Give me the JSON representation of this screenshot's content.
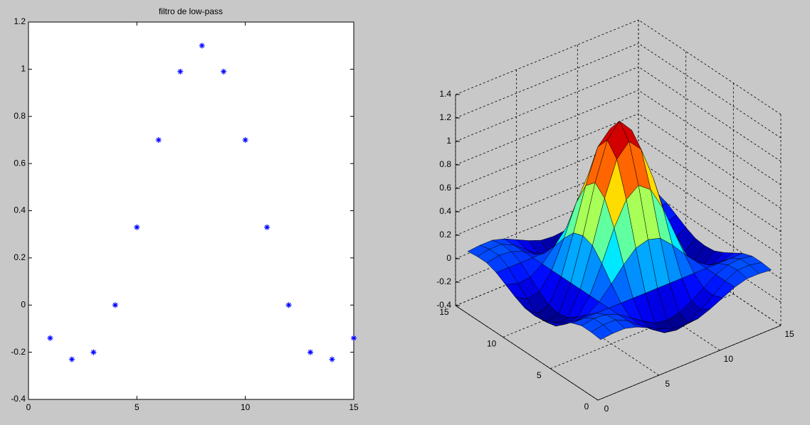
{
  "chart_data": [
    {
      "type": "scatter",
      "title": "filtro de low-pass",
      "marker": "*",
      "color": "#0000ff",
      "x": [
        1,
        2,
        3,
        4,
        5,
        6,
        7,
        8,
        9,
        10,
        11,
        12,
        13,
        14,
        15
      ],
      "values": [
        -0.14,
        -0.23,
        -0.2,
        0,
        0.33,
        0.7,
        0.99,
        1.1,
        0.99,
        0.7,
        0.33,
        0,
        -0.2,
        -0.23,
        -0.14
      ],
      "xlim": [
        0,
        15
      ],
      "xticks": [
        0,
        5,
        10,
        15
      ],
      "ylim": [
        -0.4,
        1.2
      ],
      "yticks": [
        -0.4,
        -0.2,
        0,
        0.2,
        0.4,
        0.6,
        0.8,
        1,
        1.2
      ]
    },
    {
      "type": "surface",
      "colormap": "jet",
      "grid": true,
      "edge_color": "#000000",
      "x": [
        1,
        2,
        3,
        4,
        5,
        6,
        7,
        8,
        9,
        10,
        11,
        12,
        13,
        14,
        15
      ],
      "y": [
        1,
        2,
        3,
        4,
        5,
        6,
        7,
        8,
        9,
        10,
        11,
        12,
        13,
        14,
        15
      ],
      "z": [
        [
          0.02,
          0.03,
          0.03,
          0,
          -0.05,
          -0.1,
          -0.14,
          -0.15,
          -0.14,
          -0.1,
          -0.05,
          0,
          0.03,
          0.03,
          0.02
        ],
        [
          0.03,
          0.05,
          0.05,
          0,
          -0.08,
          -0.16,
          -0.23,
          -0.25,
          -0.23,
          -0.16,
          -0.08,
          0,
          0.05,
          0.05,
          0.03
        ],
        [
          0.03,
          0.05,
          0.04,
          0,
          -0.07,
          -0.14,
          -0.2,
          -0.22,
          -0.2,
          -0.14,
          -0.07,
          0,
          0.04,
          0.05,
          0.03
        ],
        [
          0,
          0,
          0,
          0,
          0,
          0,
          0,
          0,
          0,
          0,
          0,
          0,
          0,
          0,
          0
        ],
        [
          -0.05,
          -0.08,
          -0.07,
          0,
          0.11,
          0.23,
          0.33,
          0.36,
          0.33,
          0.23,
          0.11,
          0,
          -0.07,
          -0.08,
          -0.05
        ],
        [
          -0.1,
          -0.16,
          -0.14,
          0,
          0.23,
          0.49,
          0.69,
          0.77,
          0.69,
          0.49,
          0.23,
          0,
          -0.14,
          -0.16,
          -0.1
        ],
        [
          -0.14,
          -0.23,
          -0.2,
          0,
          0.33,
          0.69,
          0.98,
          1.09,
          0.98,
          0.69,
          0.33,
          0,
          -0.2,
          -0.23,
          -0.14
        ],
        [
          -0.15,
          -0.25,
          -0.22,
          0,
          0.36,
          0.77,
          1.09,
          1.21,
          1.09,
          0.77,
          0.36,
          0,
          -0.22,
          -0.25,
          -0.15
        ],
        [
          -0.14,
          -0.23,
          -0.2,
          0,
          0.33,
          0.69,
          0.98,
          1.09,
          0.98,
          0.69,
          0.33,
          0,
          -0.2,
          -0.23,
          -0.14
        ],
        [
          -0.1,
          -0.16,
          -0.14,
          0,
          0.23,
          0.49,
          0.69,
          0.77,
          0.69,
          0.49,
          0.23,
          0,
          -0.14,
          -0.16,
          -0.1
        ],
        [
          -0.05,
          -0.08,
          -0.07,
          0,
          0.11,
          0.23,
          0.33,
          0.36,
          0.33,
          0.23,
          0.11,
          0,
          -0.07,
          -0.08,
          -0.05
        ],
        [
          0,
          0,
          0,
          0,
          0,
          0,
          0,
          0,
          0,
          0,
          0,
          0,
          0,
          0,
          0
        ],
        [
          0.03,
          0.05,
          0.04,
          0,
          -0.07,
          -0.14,
          -0.2,
          -0.22,
          -0.2,
          -0.14,
          -0.07,
          0,
          0.04,
          0.05,
          0.03
        ],
        [
          0.03,
          0.05,
          0.05,
          0,
          -0.08,
          -0.16,
          -0.23,
          -0.25,
          -0.23,
          -0.16,
          -0.08,
          0,
          0.05,
          0.05,
          0.03
        ],
        [
          0.02,
          0.03,
          0.03,
          0,
          -0.05,
          -0.1,
          -0.14,
          -0.15,
          -0.14,
          -0.1,
          -0.05,
          0,
          0.03,
          0.03,
          0.02
        ]
      ],
      "xlim": [
        0,
        15
      ],
      "xticks": [
        0,
        5,
        10,
        15
      ],
      "ylim": [
        0,
        15
      ],
      "yticks": [
        0,
        5,
        10,
        15
      ],
      "zlim": [
        -0.4,
        1.4
      ],
      "zticks": [
        -0.4,
        -0.2,
        0,
        0.2,
        0.4,
        0.6,
        0.8,
        1,
        1.2,
        1.4
      ]
    }
  ]
}
